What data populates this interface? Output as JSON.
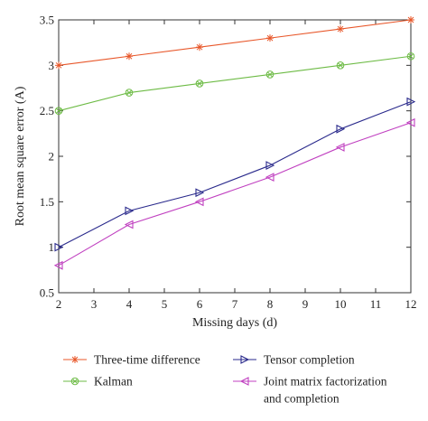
{
  "chart_data": {
    "type": "line",
    "title": "",
    "xlabel": "Missing days (d)",
    "ylabel": "Root mean square error (A)",
    "xlim": [
      2,
      12
    ],
    "ylim": [
      0.5,
      3.5
    ],
    "xticks": [
      2,
      3,
      4,
      5,
      6,
      7,
      8,
      9,
      10,
      11,
      12
    ],
    "yticks": [
      0.5,
      1,
      1.5,
      2,
      2.5,
      3,
      3.5
    ],
    "ytick_labels": [
      "0.5",
      "1",
      "1.5",
      "2",
      "2.5",
      "3",
      "3.5"
    ],
    "grid": false,
    "legend_position": "bottom",
    "x": [
      2,
      4,
      6,
      8,
      10,
      12
    ],
    "series": [
      {
        "name": "Three-time difference",
        "values": [
          3.0,
          3.1,
          3.2,
          3.3,
          3.4,
          3.5
        ],
        "color": "#e8572a",
        "marker": "asterisk"
      },
      {
        "name": "Kalman",
        "values": [
          2.5,
          2.7,
          2.8,
          2.9,
          3.0,
          3.1
        ],
        "color": "#6dbb45",
        "marker": "circle-x"
      },
      {
        "name": "Tensor completion",
        "values": [
          1.0,
          1.4,
          1.6,
          1.9,
          2.3,
          2.6
        ],
        "color": "#2a2a8c",
        "marker": "triangle-right"
      },
      {
        "name": "Joint matrix factorization\nand completion",
        "values": [
          0.8,
          1.25,
          1.5,
          1.77,
          2.1,
          2.37
        ],
        "color": "#c040c0",
        "marker": "triangle-left"
      }
    ]
  }
}
